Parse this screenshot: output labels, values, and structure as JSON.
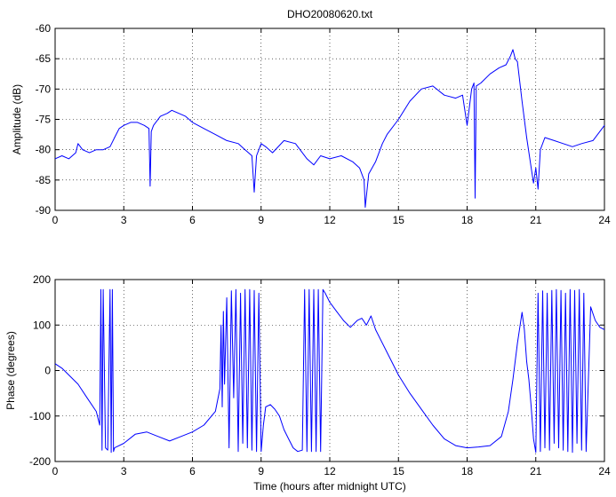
{
  "chart_data": [
    {
      "type": "line",
      "title": "DHO20080620.txt",
      "xlabel": "",
      "ylabel": "Amplitude (dB)",
      "xlim": [
        0,
        24
      ],
      "ylim": [
        -90,
        -60
      ],
      "xticks": [
        0,
        3,
        6,
        9,
        12,
        15,
        18,
        21,
        24
      ],
      "yticks": [
        -60,
        -65,
        -70,
        -75,
        -80,
        -85,
        -90
      ],
      "grid": true,
      "color": "#0000ff",
      "series": [
        {
          "x": [
            0,
            0.3,
            0.6,
            0.9,
            1.0,
            1.2,
            1.5,
            1.8,
            2.1,
            2.4,
            2.6,
            2.8,
            3.0,
            3.3,
            3.6,
            3.9,
            4.1,
            4.15,
            4.2,
            4.3,
            4.6,
            4.9,
            5.1,
            5.4,
            5.7,
            6.0,
            6.5,
            7.0,
            7.5,
            8.0,
            8.3,
            8.6,
            8.7,
            8.8,
            9.0,
            9.2,
            9.5,
            10.0,
            10.5,
            11.0,
            11.3,
            11.6,
            12.0,
            12.5,
            13.0,
            13.3,
            13.5,
            13.55,
            13.7,
            14.0,
            14.3,
            14.5,
            15.0,
            15.5,
            16.0,
            16.5,
            17.0,
            17.5,
            17.8,
            18.0,
            18.2,
            18.3,
            18.35,
            18.4,
            18.6,
            19.0,
            19.4,
            19.7,
            19.9,
            20.0,
            20.1,
            20.2,
            20.4,
            20.6,
            20.8,
            20.9,
            21.0,
            21.1,
            21.2,
            21.4,
            21.8,
            22.2,
            22.6,
            23.0,
            23.5,
            24.0
          ],
          "y": [
            -81.5,
            -81,
            -81.5,
            -80.5,
            -79,
            -80,
            -80.5,
            -80,
            -80,
            -79.5,
            -78,
            -76.5,
            -76,
            -75.5,
            -75.5,
            -76,
            -76.5,
            -86,
            -77,
            -76,
            -74.5,
            -74,
            -73.5,
            -74,
            -74.5,
            -75.5,
            -76.5,
            -77.5,
            -78.5,
            -79,
            -80,
            -81,
            -87,
            -81,
            -79,
            -79.5,
            -80.5,
            -78.5,
            -79,
            -81.5,
            -82.5,
            -81,
            -81.5,
            -81,
            -82,
            -83,
            -85,
            -89.5,
            -84,
            -82,
            -79,
            -77.5,
            -75,
            -72,
            -70,
            -69.5,
            -71,
            -71.5,
            -71,
            -76,
            -70,
            -69,
            -88,
            -69.5,
            -69,
            -67.5,
            -66.5,
            -66,
            -64.5,
            -63.5,
            -65,
            -65.5,
            -72,
            -78,
            -83,
            -85.5,
            -83,
            -86.5,
            -80,
            -78,
            -78.5,
            -79,
            -79.5,
            -79,
            -78.5,
            -76
          ]
        }
      ]
    },
    {
      "type": "line",
      "title": "",
      "xlabel": "Time (hours after midnight UTC)",
      "ylabel": "Phase (degrees)",
      "xlim": [
        0,
        24
      ],
      "ylim": [
        -200,
        200
      ],
      "xticks": [
        0,
        3,
        6,
        9,
        12,
        15,
        18,
        21,
        24
      ],
      "yticks": [
        200,
        100,
        0,
        -100,
        -200
      ],
      "grid": true,
      "color": "#0000ff",
      "series": [
        {
          "x": [
            0,
            0.3,
            0.6,
            1.0,
            1.4,
            1.8,
            1.95,
            2.0,
            2.05,
            2.1,
            2.2,
            2.3,
            2.4,
            2.45,
            2.5,
            2.55,
            2.6,
            3.0,
            3.5,
            4.0,
            4.5,
            5.0,
            5.5,
            6.0,
            6.5,
            7.0,
            7.2,
            7.25,
            7.3,
            7.35,
            7.4,
            7.5,
            7.6,
            7.7,
            7.8,
            7.9,
            8.0,
            8.1,
            8.2,
            8.3,
            8.4,
            8.5,
            8.6,
            8.7,
            8.8,
            8.9,
            9.0,
            9.1,
            9.2,
            9.4,
            9.6,
            9.8,
            10.0,
            10.2,
            10.4,
            10.6,
            10.8,
            10.9,
            11.0,
            11.1,
            11.2,
            11.3,
            11.4,
            11.5,
            11.6,
            11.7,
            11.8,
            12.0,
            12.3,
            12.6,
            12.9,
            13.2,
            13.4,
            13.6,
            13.8,
            14.0,
            14.5,
            15.0,
            15.5,
            16.0,
            16.5,
            17.0,
            17.5,
            18.0,
            18.5,
            19.0,
            19.5,
            19.8,
            20.0,
            20.2,
            20.4,
            20.5,
            20.6,
            20.7,
            20.8,
            20.9,
            21.0,
            21.1,
            21.2,
            21.3,
            21.4,
            21.5,
            21.6,
            21.7,
            21.8,
            21.9,
            22.0,
            22.1,
            22.2,
            22.3,
            22.4,
            22.5,
            22.6,
            22.7,
            22.8,
            22.9,
            23.0,
            23.1,
            23.2,
            23.4,
            23.6,
            23.8,
            24.0
          ],
          "y": [
            15,
            5,
            -10,
            -30,
            -60,
            -90,
            -120,
            178,
            -175,
            178,
            -170,
            -175,
            178,
            -180,
            178,
            -178,
            -170,
            -160,
            -140,
            -135,
            -145,
            -155,
            -145,
            -135,
            -120,
            -90,
            -40,
            100,
            -80,
            130,
            -30,
            160,
            -170,
            175,
            -60,
            178,
            -178,
            170,
            -160,
            178,
            -170,
            178,
            -175,
            176,
            -178,
            170,
            -178,
            -120,
            -80,
            -75,
            -85,
            -100,
            -130,
            -150,
            -170,
            -178,
            -175,
            178,
            -178,
            178,
            -178,
            178,
            -178,
            178,
            -178,
            178,
            170,
            150,
            130,
            110,
            95,
            110,
            115,
            100,
            120,
            90,
            40,
            -10,
            -50,
            -85,
            -120,
            -150,
            -165,
            -170,
            -168,
            -165,
            -145,
            -90,
            -20,
            60,
            128,
            90,
            20,
            -20,
            -80,
            -150,
            -180,
            170,
            -178,
            175,
            -170,
            170,
            -175,
            176,
            -160,
            178,
            -170,
            176,
            -175,
            170,
            -178,
            178,
            -180,
            176,
            -160,
            178,
            -175,
            170,
            -178,
            140,
            110,
            95,
            90
          ]
        }
      ]
    }
  ]
}
